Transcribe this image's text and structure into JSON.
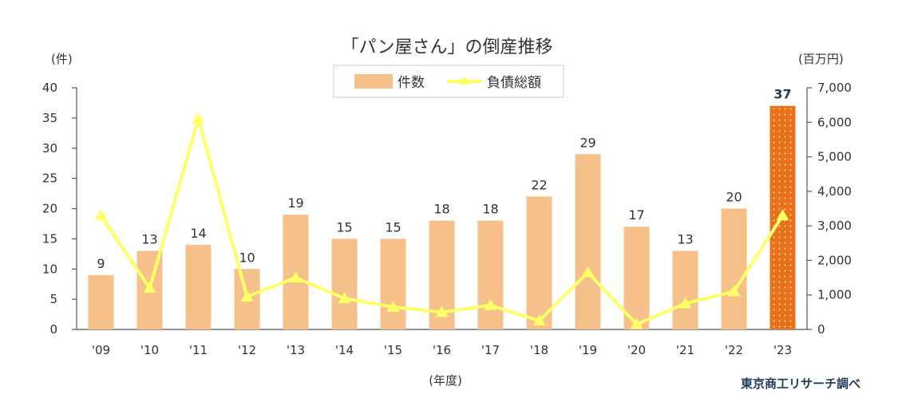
{
  "chart_data": {
    "type": "bar+line",
    "title": "「パン屋さん」の倒産推移",
    "categories": [
      "'09",
      "'10",
      "'11",
      "'12",
      "'13",
      "'14",
      "'15",
      "'16",
      "'17",
      "'18",
      "'19",
      "'20",
      "'21",
      "'22",
      "'23"
    ],
    "bar_series": {
      "name": "件数",
      "values": [
        9,
        13,
        14,
        10,
        19,
        15,
        15,
        18,
        18,
        22,
        29,
        17,
        13,
        20,
        37
      ],
      "color": "#f5c08a",
      "highlight_index": 14,
      "highlight_color": "#e8711a"
    },
    "line_series": {
      "name": "負債総額",
      "values": [
        3300,
        1200,
        6100,
        950,
        1500,
        900,
        650,
        500,
        700,
        250,
        1650,
        150,
        750,
        1100,
        3300
      ],
      "color": "#ffff66"
    },
    "y_left": {
      "unit": "(件)",
      "min": 0,
      "max": 40,
      "step": 5
    },
    "y_right": {
      "unit": "(百万円)",
      "min": 0,
      "max": 7000,
      "step": 1000
    },
    "xlabel": "(年度)",
    "legend_position": "top-center",
    "grid": false
  },
  "source": "東京商工リサーチ調べ"
}
